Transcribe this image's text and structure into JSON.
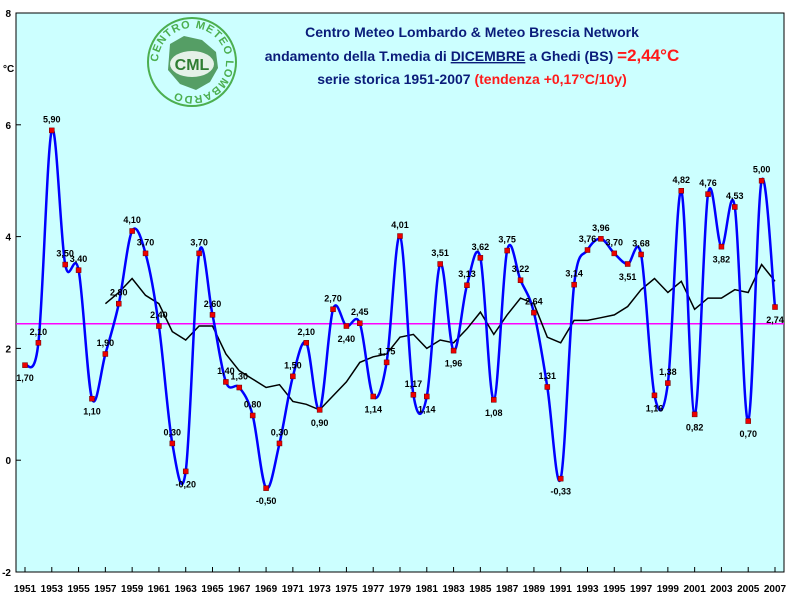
{
  "chart_data": {
    "type": "line",
    "title": {
      "line1": "Centro Meteo Lombardo & Meteo Brescia Network",
      "line2_prefix": "andamento della T.media di ",
      "line2_month": "DICEMBRE",
      "line2_mid": " a Ghedi (BS) ",
      "line2_value": "=2,44°C",
      "line3_prefix": "serie storica 1951-2007 ",
      "line3_trend": "(tendenza +0,17°C/10y)"
    },
    "ylabel": "°C",
    "ylim": [
      -2,
      8
    ],
    "yticks": [
      "-2",
      "0",
      "2",
      "4",
      "6",
      "8"
    ],
    "xlim": [
      1951,
      2007
    ],
    "xticks": [
      "1951",
      "1953",
      "1955",
      "1957",
      "1959",
      "1961",
      "1963",
      "1965",
      "1967",
      "1969",
      "1971",
      "1973",
      "1975",
      "1977",
      "1979",
      "1981",
      "1983",
      "1985",
      "1987",
      "1989",
      "1991",
      "1993",
      "1995",
      "1997",
      "1999",
      "2001",
      "2003",
      "2005",
      "2007"
    ],
    "logo_text": {
      "circle": "CENTRO METEO LOMBARDO",
      "center": "CML"
    },
    "colors": {
      "plot_bg": "#ccffff",
      "series_line": "#0000ff",
      "markers": "#ee0000",
      "moving_avg": "#000000",
      "mean_line": "#ff00ff",
      "title": "#0a1c7a",
      "title_accent": "#ff1a1a",
      "logo_green": "#4caf50"
    },
    "mean_value": 2.44,
    "series": [
      {
        "kind": "observed",
        "x": [
          1951,
          1952,
          1953,
          1954,
          1955,
          1956,
          1957,
          1958,
          1959,
          1960,
          1961,
          1962,
          1963,
          1964,
          1965,
          1966,
          1967,
          1968,
          1969,
          1970,
          1971,
          1972,
          1973,
          1974,
          1975,
          1976,
          1977,
          1978,
          1979,
          1980,
          1981,
          1982,
          1983,
          1984,
          1985,
          1986,
          1987,
          1988,
          1989,
          1990,
          1991,
          1992,
          1993,
          1994,
          1995,
          1996,
          1997,
          1998,
          1999,
          2000,
          2001,
          2002,
          2003,
          2004,
          2005,
          2006,
          2007
        ],
        "values": [
          1.7,
          2.1,
          5.9,
          3.5,
          3.4,
          1.1,
          1.9,
          2.8,
          4.1,
          3.7,
          2.4,
          0.3,
          -0.2,
          3.7,
          2.6,
          1.4,
          1.3,
          0.8,
          -0.5,
          0.3,
          1.5,
          2.1,
          0.9,
          2.7,
          2.4,
          2.45,
          1.14,
          1.75,
          4.01,
          1.17,
          1.14,
          3.51,
          1.96,
          3.13,
          3.62,
          1.08,
          3.75,
          3.22,
          2.64,
          1.31,
          -0.33,
          3.14,
          3.76,
          3.96,
          3.7,
          3.51,
          3.68,
          1.16,
          1.38,
          4.82,
          0.82,
          4.76,
          3.82,
          4.53,
          0.7,
          5.0,
          2.74
        ],
        "labels": [
          "1,70",
          "2,10",
          "5,90",
          "3,50",
          "3,40",
          "1,10",
          "1,90",
          "2,80",
          "4,10",
          "3,70",
          "2,40",
          "0,30",
          "-0,20",
          "3,70",
          "2,60",
          "1,40",
          "1,30",
          "0,80",
          "-0,50",
          "0,30",
          "1,50",
          "2,10",
          "0,90",
          "2,70",
          "2,40",
          "2,45",
          "1,14",
          "1,75",
          "4,01",
          "1,17",
          "1,14",
          "3,51",
          "1,96",
          "3,13",
          "3,62",
          "1,08",
          "3,75",
          "3,22",
          "2,64",
          "1,31",
          "-0,33",
          "3,14",
          "3,76",
          "3,96",
          "3,70",
          "3,51",
          "3,68",
          "1,16",
          "1,38",
          "4,82",
          "0,82",
          "4,76",
          "3,82",
          "4,53",
          "0,70",
          "5,00",
          "2,74"
        ]
      },
      {
        "kind": "moving_average",
        "x": [
          1957,
          1958,
          1959,
          1960,
          1961,
          1962,
          1963,
          1964,
          1965,
          1966,
          1967,
          1968,
          1969,
          1970,
          1971,
          1972,
          1973,
          1974,
          1975,
          1976,
          1977,
          1978,
          1979,
          1980,
          1981,
          1982,
          1983,
          1984,
          1985,
          1986,
          1987,
          1988,
          1989,
          1990,
          1991,
          1992,
          1993,
          1994,
          1995,
          1996,
          1997,
          1998,
          1999,
          2000,
          2001,
          2002,
          2003,
          2004,
          2005,
          2006,
          2007
        ],
        "values": [
          2.8,
          3.0,
          3.25,
          2.95,
          2.8,
          2.3,
          2.15,
          2.4,
          2.4,
          1.9,
          1.6,
          1.45,
          1.3,
          1.35,
          1.05,
          1.0,
          0.9,
          1.15,
          1.4,
          1.75,
          1.85,
          1.9,
          2.2,
          2.25,
          2.0,
          2.15,
          2.1,
          2.35,
          2.65,
          2.25,
          2.6,
          2.9,
          2.8,
          2.2,
          2.1,
          2.5,
          2.5,
          2.55,
          2.6,
          2.75,
          3.05,
          3.25,
          3.0,
          3.2,
          2.7,
          2.9,
          2.9,
          3.05,
          3.0,
          3.5,
          3.2
        ]
      }
    ]
  }
}
